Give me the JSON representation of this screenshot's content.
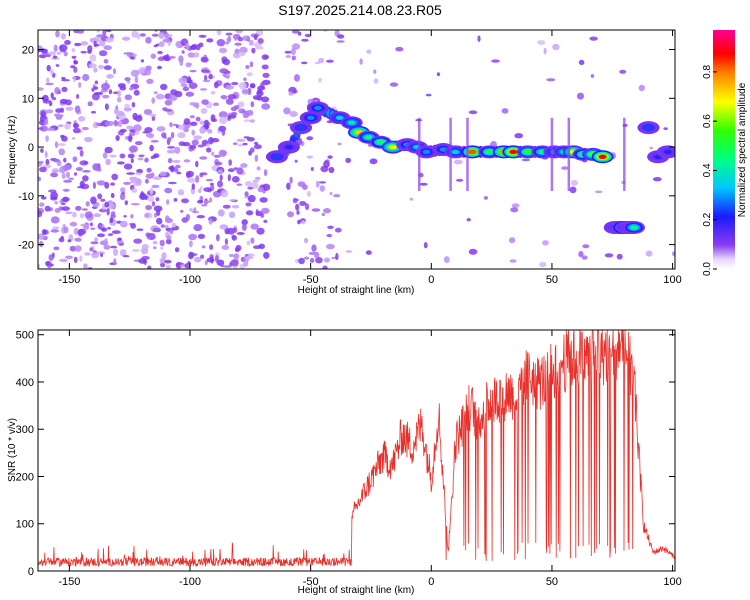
{
  "title": "S197.2025.214.08.23.R05",
  "colors": {
    "speckle": "#7a1ee6",
    "speckle_light": "#c9a6f4",
    "snr_line": "#e8302a",
    "axis": "#000000"
  },
  "chart_data": [
    {
      "type": "heatmap",
      "xlabel": "Height of straight line (km)",
      "ylabel": "Frequency (Hz)",
      "xlim": [
        -163,
        101
      ],
      "ylim": [
        -25,
        24
      ],
      "xticks": [
        "-150",
        "-100",
        "-50",
        "0",
        "50",
        "100"
      ],
      "yticks": [
        "-20",
        "-10",
        "0",
        "10",
        "20"
      ],
      "colorbar": {
        "label": "Normalized spectral amplitude",
        "range": [
          0,
          0.97
        ],
        "ticks": [
          "0.0",
          "0.2",
          "0.4",
          "0.6",
          "0.8"
        ],
        "colormap": "rainbow (violet→blue→cyan→green→yellow→red→magenta)"
      },
      "main_ridge": {
        "x": [
          -64,
          -59,
          -54,
          -50,
          -47,
          -38,
          -33,
          -30,
          -26,
          -21,
          -16,
          -10,
          -6,
          -2,
          5,
          10,
          17,
          24,
          30,
          34,
          40,
          46,
          51,
          55,
          59,
          63,
          67,
          71
        ],
        "frequency": [
          -2,
          0,
          4,
          6,
          8,
          6,
          5,
          3,
          2,
          1,
          0,
          0.5,
          0,
          -1,
          -0.5,
          -1,
          -1,
          -1,
          -1,
          -1,
          -1,
          -1,
          -1,
          -1,
          -1,
          -1.5,
          -1.5,
          -2
        ],
        "peak_amplitude": [
          0.25,
          0.2,
          0.25,
          0.3,
          0.3,
          0.35,
          0.4,
          0.75,
          0.45,
          0.5,
          0.7,
          0.3,
          0.35,
          0.3,
          0.3,
          0.35,
          0.85,
          0.5,
          0.8,
          0.9,
          0.55,
          0.45,
          0.35,
          0.4,
          0.7,
          0.5,
          0.6,
          0.9
        ]
      },
      "secondary_features": [
        {
          "x": 80,
          "frequency": -16.5,
          "peak_amplitude": 0.9
        },
        {
          "x": 90,
          "frequency": 4,
          "peak_amplitude": 0.25
        },
        {
          "x": 94,
          "frequency": -2,
          "peak_amplitude": 0.2
        },
        {
          "x": 98,
          "frequency": -1,
          "peak_amplitude": 0.2
        }
      ]
    },
    {
      "type": "line",
      "xlabel": "Height of straight line (km)",
      "ylabel": "SNR (10 * v/v)",
      "xlim": [
        -163,
        101
      ],
      "ylim": [
        0,
        510
      ],
      "xticks": [
        "-150",
        "-100",
        "-50",
        "0",
        "50",
        "100"
      ],
      "yticks": [
        "0",
        "100",
        "200",
        "300",
        "400",
        "500"
      ],
      "series": [
        {
          "x": [
            -163,
            -150,
            -130,
            -110,
            -95,
            -85,
            -75,
            -62,
            -55,
            -50,
            -45,
            -40,
            -36,
            -32,
            -28,
            -24,
            -20,
            -16,
            -12,
            -8,
            -4,
            0,
            3,
            7,
            10,
            13,
            16,
            20,
            24,
            28,
            32,
            36,
            40,
            44,
            48,
            52,
            56,
            60,
            64,
            68,
            72,
            76,
            80,
            84,
            88,
            92,
            96,
            101
          ],
          "y": [
            20,
            22,
            25,
            22,
            28,
            30,
            25,
            28,
            35,
            30,
            28,
            25,
            20,
            130,
            170,
            210,
            250,
            230,
            300,
            270,
            320,
            200,
            350,
            40,
            280,
            320,
            360,
            330,
            370,
            380,
            390,
            380,
            430,
            410,
            420,
            450,
            460,
            470,
            465,
            480,
            475,
            490,
            500,
            410,
            100,
            40,
            50,
            30
          ]
        }
      ]
    }
  ]
}
